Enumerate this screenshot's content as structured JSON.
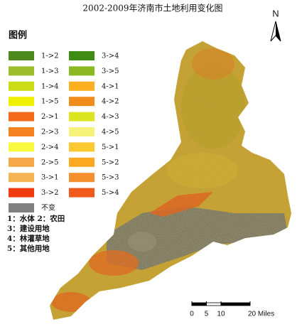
{
  "title": "2002-2009年济南市土地利用变化图",
  "north": "N",
  "legend": {
    "title": "图例",
    "columns": [
      [
        {
          "label": "1->2",
          "color": "#4c8a1e"
        },
        {
          "label": "1->3",
          "color": "#9dbd2c"
        },
        {
          "label": "1->4",
          "color": "#cadc14"
        },
        {
          "label": "1->5",
          "color": "#eef000"
        },
        {
          "label": "2->1",
          "color": "#f26a1a"
        },
        {
          "label": "2->3",
          "color": "#f58220"
        },
        {
          "label": "2->4",
          "color": "#f8f840"
        },
        {
          "label": "2->5",
          "color": "#f5a84a"
        },
        {
          "label": "3->1",
          "color": "#f7b452"
        },
        {
          "label": "3->2",
          "color": "#f03a10"
        },
        {
          "label": "不变",
          "color": "#808080"
        }
      ],
      [
        {
          "label": "3->4",
          "color": "#3e8c14"
        },
        {
          "label": "3->5",
          "color": "#8cb822"
        },
        {
          "label": "4->1",
          "color": "#fcb020"
        },
        {
          "label": "4->2",
          "color": "#f08c1a"
        },
        {
          "label": "4->3",
          "color": "#dce620"
        },
        {
          "label": "4->5",
          "color": "#f6f27a"
        },
        {
          "label": "5->1",
          "color": "#fcc830"
        },
        {
          "label": "5->2",
          "color": "#fca820"
        },
        {
          "label": "5->3",
          "color": "#f59030"
        },
        {
          "label": "5->4",
          "color": "#f05a1a"
        }
      ]
    ]
  },
  "notes": [
    "1：水体  2：农田",
    "3：建设用地",
    "4：林灌草地",
    "5：其他用地"
  ],
  "scale": {
    "ticks": [
      0,
      5,
      10,
      {
        "value": 20,
        "label": "20 Miles"
      }
    ]
  }
}
